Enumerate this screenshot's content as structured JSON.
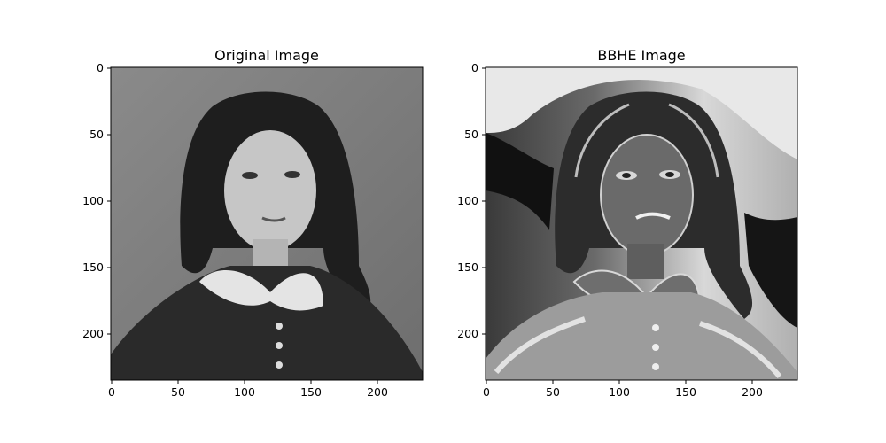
{
  "figure": {
    "panels": [
      {
        "title": "Original Image",
        "image_kind": "grayscale-portrait",
        "image_extent": [
          0,
          235
        ],
        "x_ticks": [
          "0",
          "50",
          "100",
          "150",
          "200"
        ],
        "y_ticks": [
          "0",
          "50",
          "100",
          "150",
          "200"
        ]
      },
      {
        "title": "BBHE Image",
        "image_kind": "equalized-grayscale-portrait",
        "image_extent": [
          0,
          235
        ],
        "x_ticks": [
          "0",
          "50",
          "100",
          "150",
          "200"
        ],
        "y_ticks": [
          "0",
          "50",
          "100",
          "150",
          "200"
        ]
      }
    ]
  }
}
